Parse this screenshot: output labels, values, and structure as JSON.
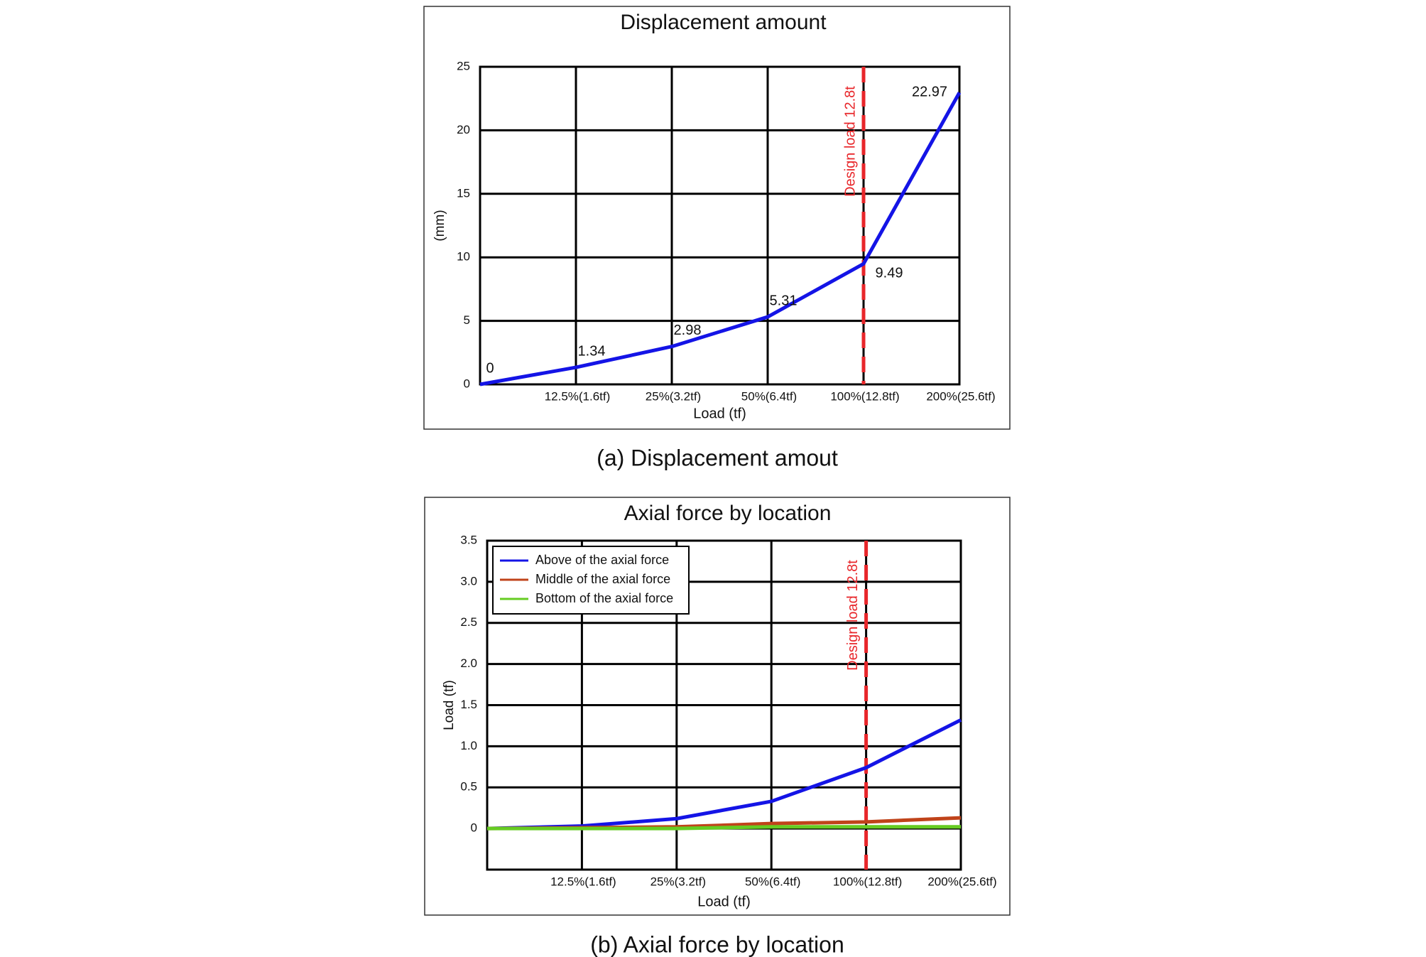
{
  "chart_data": [
    {
      "type": "line",
      "title": "Displacement amount",
      "caption": "(a) Displacement amout",
      "xlabel": "Load (tf)",
      "ylabel": "(mm)",
      "categories": [
        null,
        "12.5%(1.6tf)",
        "25%(3.2tf)",
        "50%(6.4tf)",
        "100%(12.8tf)",
        "200%(25.6tf)"
      ],
      "values": [
        0,
        1.34,
        2.98,
        5.31,
        9.49,
        22.97
      ],
      "color": "#1414e6",
      "show_values": true,
      "ylim": [
        0,
        25
      ],
      "yticks": [
        0,
        5,
        10,
        15,
        20,
        25
      ],
      "grid": true,
      "reference_line": {
        "at": "100%(12.8tf)",
        "label": "Design load 12.8t",
        "color": "#e8262a"
      }
    },
    {
      "type": "line",
      "title": "Axial force by location",
      "caption": "(b) Axial force by location",
      "xlabel": "Load (tf)",
      "ylabel": "Load (tf)",
      "categories": [
        null,
        "12.5%(1.6tf)",
        "25%(3.2tf)",
        "50%(6.4tf)",
        "100%(12.8tf)",
        "200%(25.6tf)"
      ],
      "series": [
        {
          "name": "Above of the axial force",
          "color": "#1414e6",
          "values": [
            0,
            0.03,
            0.12,
            0.33,
            0.74,
            1.32
          ]
        },
        {
          "name": "Middle of the axial force",
          "color": "#c0431a",
          "values": [
            0,
            0.01,
            0.02,
            0.06,
            0.08,
            0.13
          ]
        },
        {
          "name": "Bottom of the axial force",
          "color": "#66cc22",
          "values": [
            0,
            0,
            0,
            0.02,
            0.02,
            0.02
          ]
        }
      ],
      "ylim": [
        -0.5,
        3.5
      ],
      "yticks": [
        0,
        0.5,
        {
          "value": 1,
          "label": "1.0"
        },
        1.5,
        {
          "value": 2,
          "label": "2.0"
        },
        2.5,
        {
          "value": 3,
          "label": "3.0"
        },
        3.5
      ],
      "grid": true,
      "legend": "upper-left",
      "reference_line": {
        "at": "100%(12.8tf)",
        "label": "Design load 12.8t",
        "color": "#e8262a"
      }
    }
  ]
}
